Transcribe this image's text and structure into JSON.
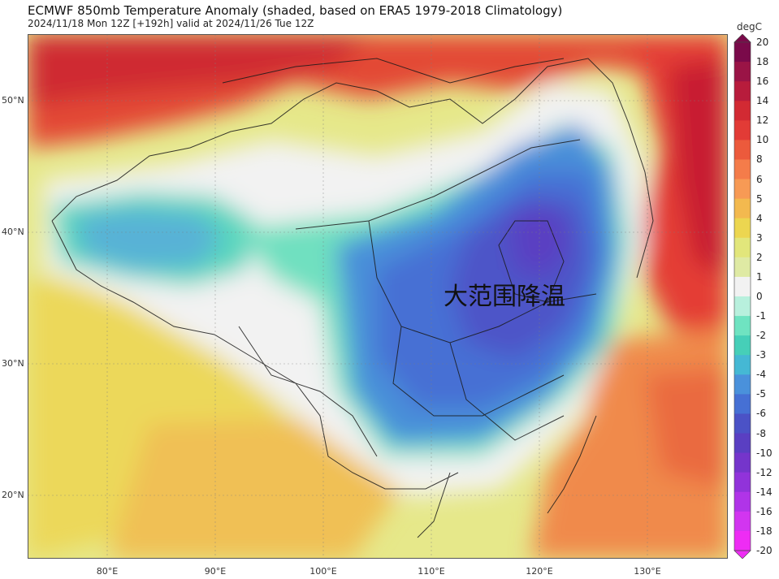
{
  "header": {
    "title": "ECMWF 850mb Temperature Anomaly (shaded, based on ERA5 1979-2018 Climatology)",
    "subtitle": "2024/11/18 Mon 12Z [+192h] valid at 2024/11/26 Tue 12Z"
  },
  "overlay_text": "大范围降温",
  "colorbar": {
    "unit": "degC",
    "ticks": [
      "20",
      "18",
      "16",
      "14",
      "12",
      "10",
      "8",
      "6",
      "5",
      "4",
      "3",
      "2",
      "1",
      "0",
      "-1",
      "-2",
      "-3",
      "-4",
      "-5",
      "-6",
      "-8",
      "-10",
      "-12",
      "-14",
      "-16",
      "-18",
      "-20"
    ],
    "colors": [
      "#7a0a4a",
      "#9a1446",
      "#b81c3c",
      "#d22a33",
      "#e23b36",
      "#ec5a3c",
      "#f47c4a",
      "#f79a55",
      "#f3b94f",
      "#ecd650",
      "#e2e67b",
      "#dfeaa4",
      "#f2f2f2",
      "#b8f0dd",
      "#6fe3c1",
      "#46cfb8",
      "#45b8d4",
      "#4a91db",
      "#4670d4",
      "#4b52c6",
      "#5a3fc2",
      "#7535cb",
      "#9133da",
      "#b034e8",
      "#d235f0",
      "#ee2cf4"
    ]
  },
  "axes": {
    "lat_labels": [
      "50°N",
      "40°N",
      "30°N",
      "20°N"
    ],
    "lon_labels": [
      "80°E",
      "90°E",
      "100°E",
      "110°E",
      "120°E",
      "130°E"
    ]
  }
}
